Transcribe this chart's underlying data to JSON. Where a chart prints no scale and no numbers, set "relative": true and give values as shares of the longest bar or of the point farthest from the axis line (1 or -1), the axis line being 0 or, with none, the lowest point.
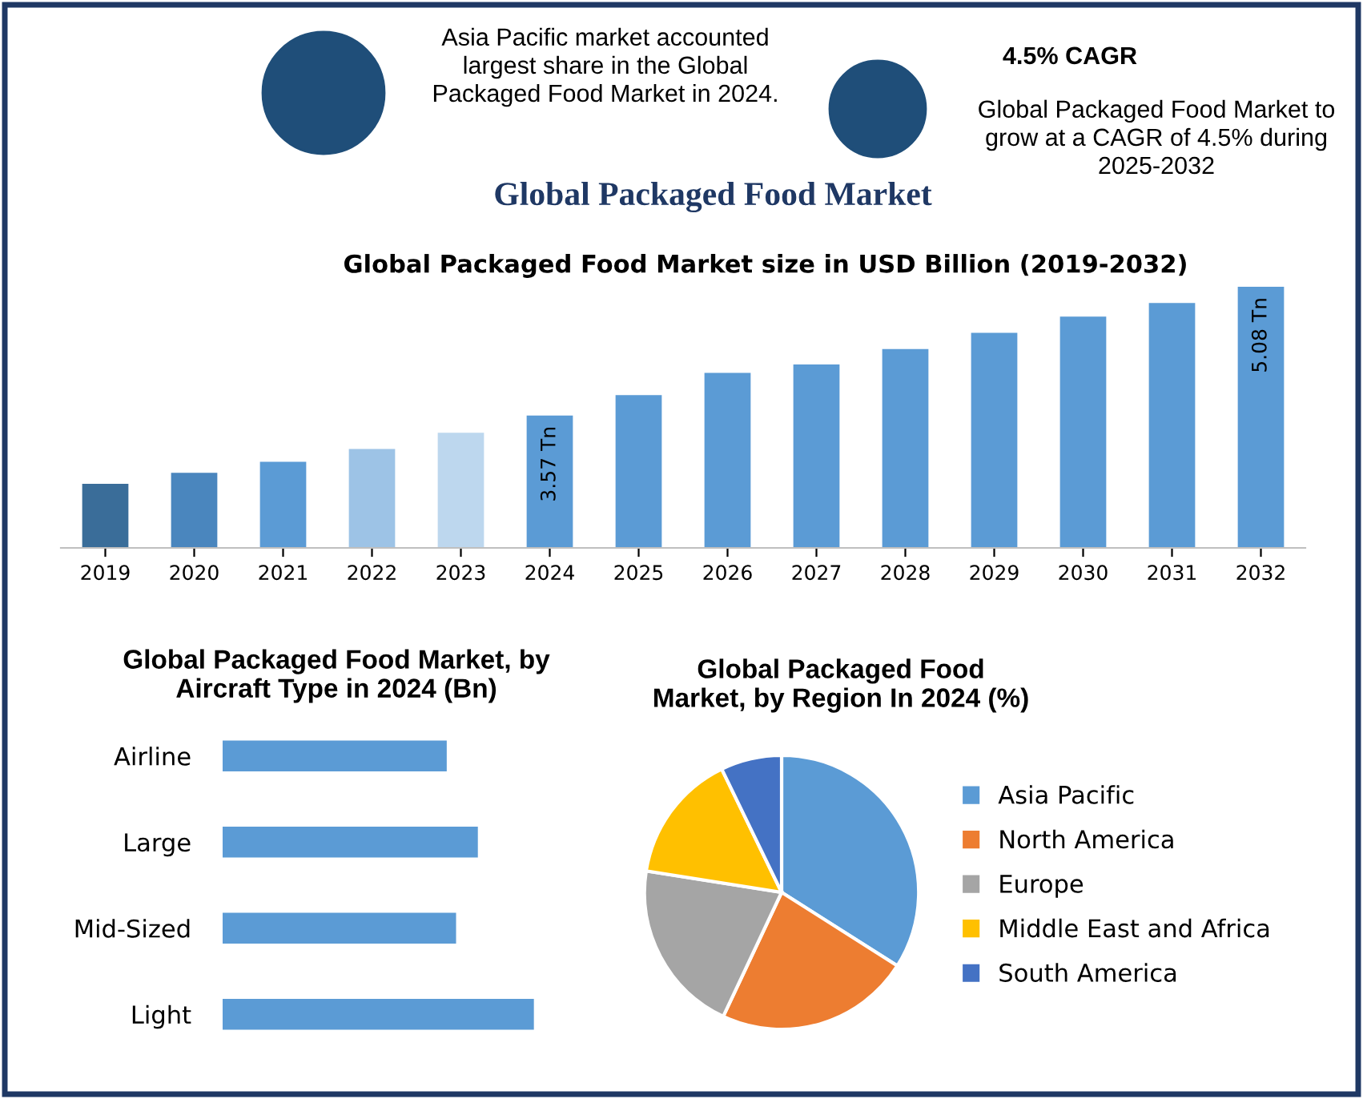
{
  "chart_data": [
    {
      "type": "other",
      "title": "Global Packaged Food Market",
      "annotations": [
        "Asia Pacific market accounted largest share in the Global Packaged Food Market in 2024.",
        "4.5% CAGR",
        "Global Packaged Food Market to grow at a CAGR of 4.5% during 2025-2032"
      ]
    },
    {
      "type": "bar",
      "title": "Global Packaged Food Market size in USD Billion (2019-2032)",
      "categories": [
        "2019",
        "2020",
        "2021",
        "2022",
        "2023",
        "2024",
        "2025",
        "2026",
        "2027",
        "2028",
        "2029",
        "2030",
        "2031",
        "2032"
      ],
      "values": [
        2.77,
        2.9,
        3.03,
        3.18,
        3.37,
        3.57,
        3.81,
        4.07,
        4.17,
        4.35,
        4.54,
        4.73,
        4.89,
        5.08
      ],
      "colors": [
        "#3a6d99",
        "#4a86be",
        "#5b9bd5",
        "#9dc3e6",
        "#bdd7ee",
        "#5b9bd5",
        "#5b9bd5",
        "#5b9bd5",
        "#5b9bd5",
        "#5b9bd5",
        "#5b9bd5",
        "#5b9bd5",
        "#5b9bd5",
        "#5b9bd5"
      ],
      "value_labels": [
        null,
        null,
        null,
        null,
        null,
        "3.57 Tn",
        null,
        null,
        null,
        null,
        null,
        null,
        null,
        "5.08 Tn"
      ],
      "ylim": [
        2.02,
        5.08
      ],
      "tick_labels": "x",
      "grid": false
    },
    {
      "type": "bar",
      "orientation": "horizontal",
      "relative": true,
      "title": "Global Packaged Food Market, by Aircraft Type in 2024 (Bn)",
      "categories": [
        "Airline",
        "Large",
        "Mid-Sized",
        "Light"
      ],
      "values": [
        0.72,
        0.82,
        0.75,
        1
      ],
      "color": "#5b9bd5",
      "grid": false
    },
    {
      "type": "pie",
      "title": "Global Packaged Food Market, by Region In 2024 (%)",
      "categories": [
        "Asia Pacific",
        "North America",
        "Europe",
        "Middle East and Africa",
        "South America"
      ],
      "values": [
        34,
        23,
        20.5,
        15.3,
        7.2
      ],
      "colors": [
        "#5b9bd5",
        "#ed7d31",
        "#a5a5a5",
        "#ffc000",
        "#4472c4"
      ],
      "legend": "right"
    }
  ]
}
